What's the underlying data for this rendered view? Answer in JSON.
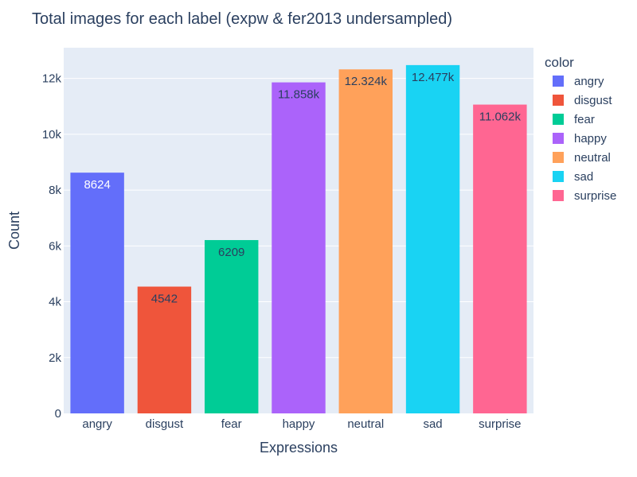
{
  "chart_data": {
    "type": "bar",
    "title": "Total images for each label (expw & fer2013 undersampled)",
    "xlabel": "Expressions",
    "ylabel": "Count",
    "categories": [
      "angry",
      "disgust",
      "fear",
      "happy",
      "neutral",
      "sad",
      "surprise"
    ],
    "values": [
      8624,
      4542,
      6209,
      11858,
      12324,
      12477,
      11062
    ],
    "data_labels": [
      "8624",
      "4542",
      "6209",
      "11.858k",
      "12.324k",
      "12.477k",
      "11.062k"
    ],
    "colors": [
      "#636efa",
      "#ef553b",
      "#00cc96",
      "#ab63fa",
      "#ffa15a",
      "#19d3f3",
      "#ff6692"
    ],
    "label_colors": [
      "#ffffff",
      "#2a3f5f",
      "#2a3f5f",
      "#2a3f5f",
      "#2a3f5f",
      "#2a3f5f",
      "#2a3f5f"
    ],
    "ylim": [
      0,
      13100
    ],
    "yticks": [
      0,
      2000,
      4000,
      6000,
      8000,
      10000,
      12000
    ],
    "ytick_labels": [
      "0",
      "2k",
      "4k",
      "6k",
      "8k",
      "10k",
      "12k"
    ],
    "grid": true,
    "legend": {
      "title": "color",
      "placement": "right",
      "entries": [
        "angry",
        "disgust",
        "fear",
        "happy",
        "neutral",
        "sad",
        "surprise"
      ]
    },
    "plot_background": "#e5ecf6"
  }
}
